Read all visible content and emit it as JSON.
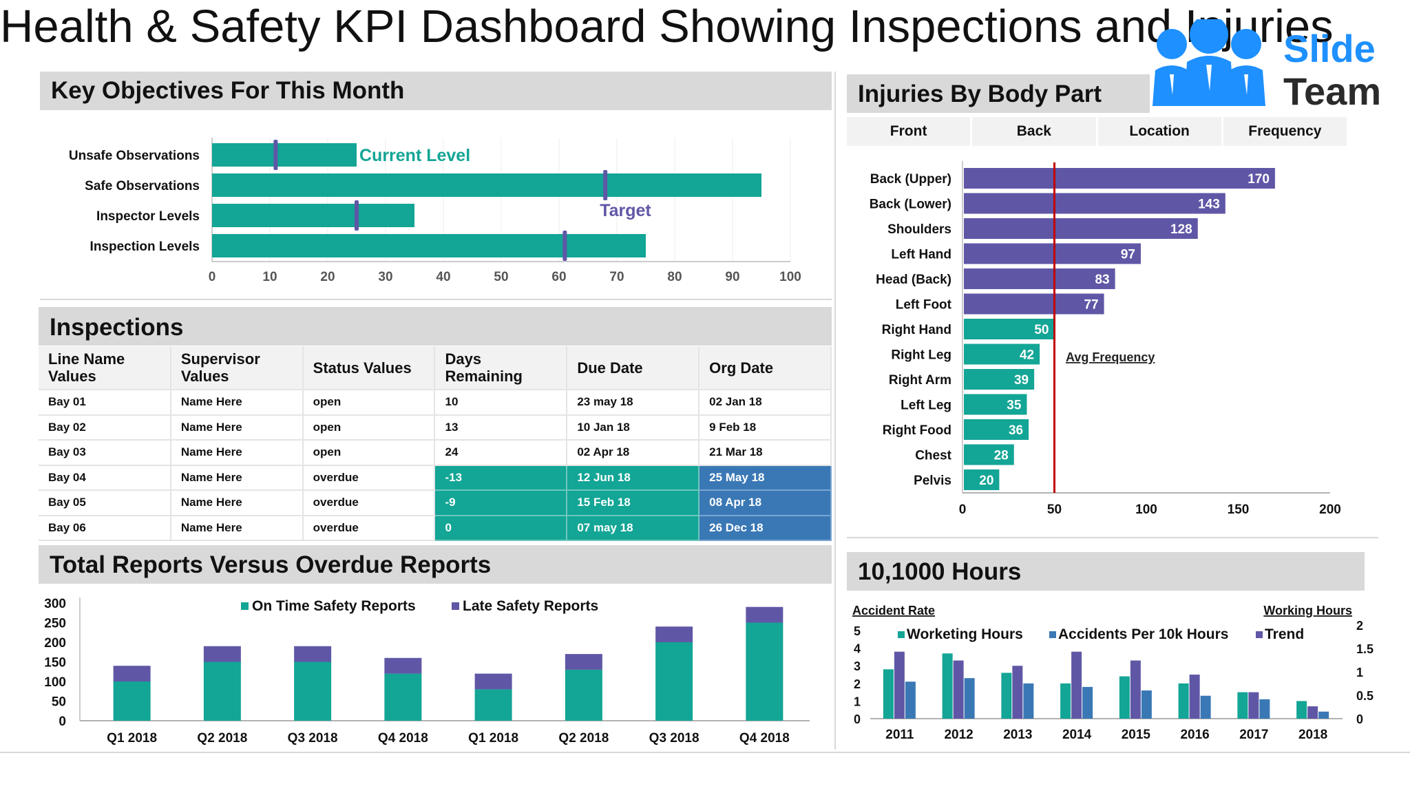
{
  "title": "Health & Safety KPI Dashboard Showing Inspections and Injuries",
  "logo": {
    "line1": "Slide",
    "line2": "Team",
    "color": "#1e90ff"
  },
  "colors": {
    "teal": "#13a595",
    "purple": "#5f57a6",
    "blue": "#3a78b5",
    "red": "#c00000",
    "header_bg": "#d9d9d9"
  },
  "objectives": {
    "header": "Key Objectives For This Month",
    "annotations": {
      "current": "Current Level",
      "target": "Target"
    },
    "chart_data": {
      "type": "bar",
      "orientation": "horizontal",
      "categories": [
        "Unsafe Observations",
        "Safe Observations",
        "Inspector Levels",
        "Inspection Levels"
      ],
      "series": [
        {
          "name": "Current Level",
          "values": [
            25,
            95,
            35,
            75
          ]
        },
        {
          "name": "Target",
          "values": [
            11,
            68,
            25,
            61
          ]
        }
      ],
      "xlim": [
        0,
        100
      ],
      "xticks": [
        "0",
        "10",
        "20",
        "30",
        "40",
        "50",
        "60",
        "70",
        "80",
        "90",
        "100"
      ]
    }
  },
  "inspections": {
    "header": "Inspections",
    "columns": [
      "Line Name Values",
      "Supervisor Values",
      "Status Values",
      "Days Remaining",
      "Due Date",
      "Org Date"
    ],
    "rows": [
      [
        "Bay 01",
        "Name Here",
        "open",
        "10",
        "23 may 18",
        "02 Jan 18"
      ],
      [
        "Bay 02",
        "Name Here",
        "open",
        "13",
        "10 Jan 18",
        "9 Feb 18"
      ],
      [
        "Bay 03",
        "Name Here",
        "open",
        "24",
        "02 Apr 18",
        "21 Mar 18"
      ],
      [
        "Bay 04",
        "Name Here",
        "overdue",
        "-13",
        "12 Jun 18",
        "25 May 18"
      ],
      [
        "Bay 05",
        "Name Here",
        "overdue",
        "-9",
        "15 Feb 18",
        "08 Apr 18"
      ],
      [
        "Bay 06",
        "Name Here",
        "overdue",
        "0",
        "07 may 18",
        "26 Dec 18"
      ]
    ]
  },
  "reports": {
    "header": "Total Reports Versus Overdue Reports",
    "chart_data": {
      "type": "bar",
      "stacked": true,
      "categories": [
        "Q1 2018",
        "Q2 2018",
        "Q3 2018",
        "Q4 2018",
        "Q1 2018",
        "Q2 2018",
        "Q3 2018",
        "Q4 2018"
      ],
      "series": [
        {
          "name": "On Time Safety Reports",
          "values": [
            100,
            150,
            150,
            120,
            80,
            130,
            200,
            250
          ]
        },
        {
          "name": "Late Safety Reports",
          "values": [
            40,
            40,
            40,
            40,
            40,
            40,
            40,
            40
          ]
        }
      ],
      "ylim": [
        0,
        300
      ],
      "yticks": [
        "300",
        "250",
        "200",
        "150",
        "100",
        "50",
        "0"
      ],
      "legend": "top"
    }
  },
  "injuries": {
    "header": "Injuries By Body Part",
    "tabs": [
      "Front",
      "Back",
      "Location",
      "Frequency"
    ],
    "avg_label": "Avg Frequency",
    "chart_data": {
      "type": "bar",
      "orientation": "horizontal",
      "categories": [
        "Back (Upper)",
        "Back (Lower)",
        "Shoulders",
        "Left Hand",
        "Head (Back)",
        "Left Foot",
        "Right Hand",
        "Right Leg",
        "Right Arm",
        "Left Leg",
        "Right Food",
        "Chest",
        "Pelvis"
      ],
      "values": [
        170,
        143,
        128,
        97,
        83,
        77,
        50,
        42,
        39,
        35,
        36,
        28,
        20
      ],
      "average": 50,
      "xlim": [
        0,
        200
      ],
      "xticks": [
        "0",
        "50",
        "100",
        "150",
        "200"
      ]
    }
  },
  "hours": {
    "header": "10,1000 Hours",
    "left_axis_label": "Accident Rate",
    "right_axis_label": "Working Hours",
    "chart_data": {
      "type": "bar",
      "categories": [
        "2011",
        "2012",
        "2013",
        "2014",
        "2015",
        "2016",
        "2017",
        "2018"
      ],
      "series": [
        {
          "name": "Worketing Hours",
          "values": [
            2.8,
            3.7,
            2.6,
            2.0,
            2.4,
            2.0,
            1.5,
            1.0
          ]
        },
        {
          "name": "Accidents Per 10k Hours",
          "values": [
            2.1,
            2.3,
            2.0,
            1.8,
            1.6,
            1.3,
            1.1,
            0.4
          ]
        },
        {
          "name": "Trend",
          "values": [
            3.8,
            3.3,
            3.0,
            3.8,
            3.3,
            2.5,
            1.5,
            0.7
          ]
        }
      ],
      "ylim_left": [
        0,
        5
      ],
      "yticks_left": [
        "5",
        "4",
        "3",
        "2",
        "1",
        "0"
      ],
      "yticks_right": [
        "2",
        "1.5",
        "1",
        "0.5",
        "0"
      ],
      "legend": "top"
    }
  }
}
